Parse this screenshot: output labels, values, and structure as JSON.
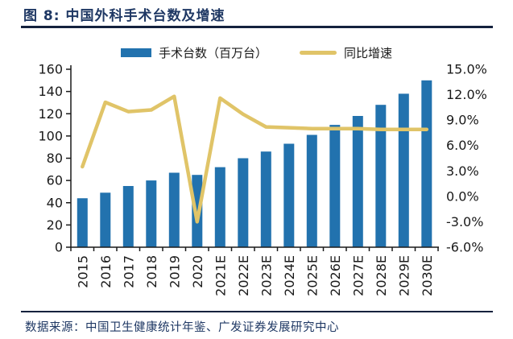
{
  "header": {
    "title": "图 8:  中国外科手术台数及增速"
  },
  "legend": {
    "bar_label": "手术台数（百万台）",
    "line_label": "同比增速"
  },
  "footer": {
    "source": "数据来源：中国卫生健康统计年鉴、广发证券发展研究中心"
  },
  "chart_data": {
    "type": "bar",
    "title": "中国外科手术台数及增速",
    "categories": [
      "2015",
      "2016",
      "2017",
      "2018",
      "2019",
      "2020",
      "2021E",
      "2022E",
      "2023E",
      "2024E",
      "2025E",
      "2026E",
      "2027E",
      "2028E",
      "2029E",
      "2030E"
    ],
    "series": [
      {
        "name": "手术台数（百万台）",
        "type": "bar",
        "axis": "left",
        "values": [
          44,
          49,
          55,
          60,
          67,
          65,
          72,
          80,
          86,
          93,
          101,
          110,
          118,
          128,
          138,
          150
        ]
      },
      {
        "name": "同比增速",
        "type": "line",
        "axis": "right",
        "values": [
          3.5,
          11.1,
          10.0,
          10.2,
          11.8,
          -3.0,
          11.6,
          9.7,
          8.2,
          8.1,
          8.0,
          8.0,
          8.0,
          7.9,
          7.9,
          7.9
        ]
      }
    ],
    "left_axis": {
      "label": "",
      "min": 0,
      "max": 160,
      "step": 20,
      "tick_labels": [
        "0",
        "20",
        "40",
        "60",
        "80",
        "100",
        "120",
        "140",
        "160"
      ]
    },
    "right_axis": {
      "label": "",
      "min": -6,
      "max": 15,
      "step": 3,
      "format": "percent",
      "tick_labels": [
        "-6.0%",
        "-3.0%",
        "0.0%",
        "3.0%",
        "6.0%",
        "9.0%",
        "12.0%",
        "15.0%"
      ]
    },
    "legend_position": "top",
    "grid": false,
    "x_tick_rotation": -90,
    "colors": {
      "bar": "#2272AE",
      "line": "#E0C468",
      "title_text": "#1F3864",
      "footer_text": "#1F3864",
      "rule": "#14213D",
      "axis_text": "#1a1a1a",
      "axis_line": "#1a1a1a",
      "background": "#ffffff"
    }
  }
}
